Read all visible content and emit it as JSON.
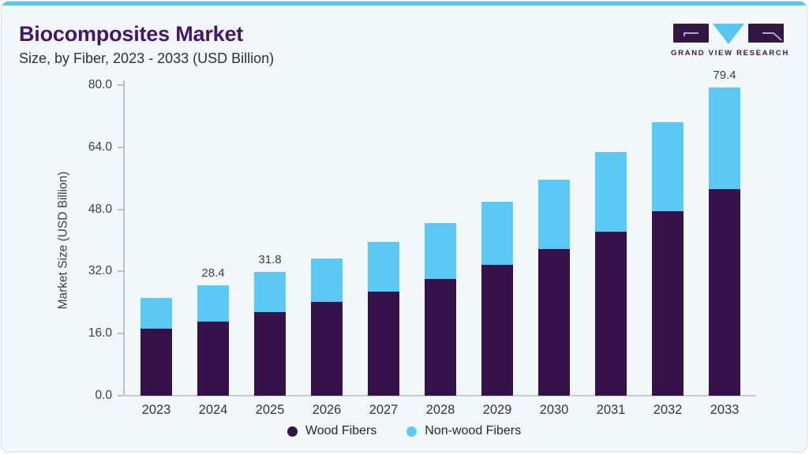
{
  "header": {
    "title": "Biocomposites Market",
    "subtitle": "Size, by Fiber, 2023 - 2033 (USD Billion)"
  },
  "logo": {
    "brand": "GRAND VIEW RESEARCH"
  },
  "chart_data": {
    "type": "bar",
    "stacked": true,
    "title": "Biocomposites Market Size, by Fiber, 2023 - 2033 (USD Billion)",
    "categories": [
      "2023",
      "2024",
      "2025",
      "2026",
      "2027",
      "2028",
      "2029",
      "2030",
      "2031",
      "2032",
      "2033"
    ],
    "series": [
      {
        "name": "Wood Fibers",
        "color": "#36124A",
        "values": [
          17.2,
          19.0,
          21.6,
          24.2,
          26.9,
          30.1,
          33.8,
          37.8,
          42.3,
          47.5,
          53.1
        ]
      },
      {
        "name": "Non-wood Fibers",
        "color": "#5CC9F4",
        "values": [
          7.9,
          9.4,
          10.2,
          11.2,
          12.8,
          14.3,
          16.1,
          17.9,
          20.5,
          23.0,
          26.3
        ]
      }
    ],
    "totals": [
      25.1,
      28.4,
      31.8,
      35.4,
      39.7,
      44.4,
      49.9,
      55.7,
      62.8,
      70.5,
      79.4
    ],
    "bar_labels": [
      "",
      "28.4",
      "31.8",
      "",
      "",
      "",
      "",
      "",
      "",
      "",
      "79.4"
    ],
    "xlabel": "",
    "ylabel": "Market Size (USD Billion)",
    "ylim": [
      0,
      80
    ],
    "yticks": [
      "0.0",
      "16.0",
      "32.0",
      "48.0",
      "64.0",
      "80.0"
    ],
    "grid": false,
    "legend_position": "bottom"
  },
  "legend": [
    {
      "label": "Wood Fibers",
      "color": "#36124A"
    },
    {
      "label": "Non-wood Fibers",
      "color": "#5CC9F4"
    }
  ],
  "colors": {
    "accent_top_bar": "#56C7F0",
    "card_background": "#F2F7FA",
    "card_border": "#CFDFEB",
    "title_text": "#451667",
    "subtitle_text": "#2E2F39",
    "axis_line": "#B9C1CD",
    "tick_text": "#3B3C46",
    "logo_purple": "#321643",
    "logo_blue": "#56C7F0"
  }
}
